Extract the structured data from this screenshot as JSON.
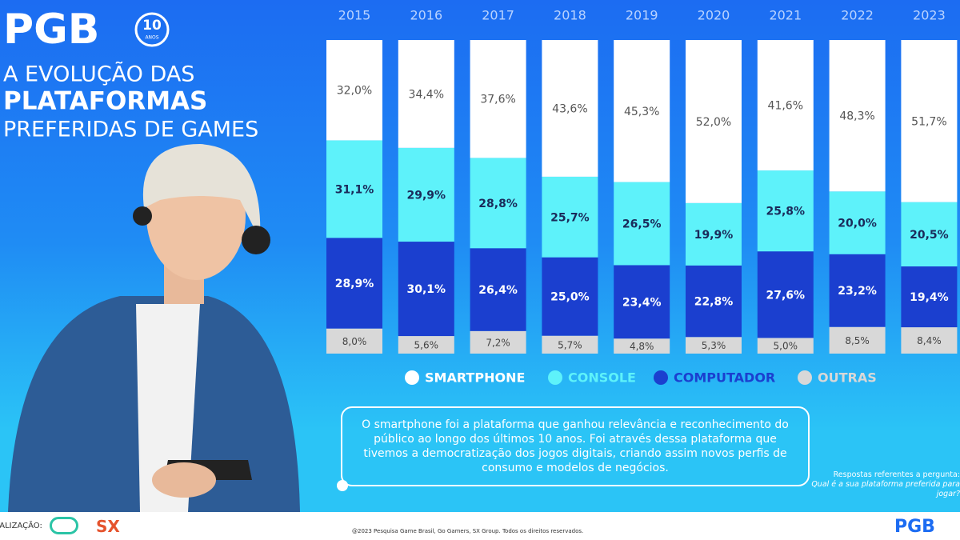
{
  "header": {
    "logo": "PGB",
    "badge": "10",
    "badge_sub": "ANOS",
    "title_lines": [
      "A EVOLUÇÃO DAS",
      "PLATAFORMAS",
      "PREFERIDAS DE GAMES"
    ]
  },
  "chart_data": {
    "type": "stacked_bar",
    "categories": [
      "2015",
      "2016",
      "2017",
      "2018",
      "2019",
      "2020",
      "2021",
      "2022",
      "2023"
    ],
    "ylim": [
      0,
      100
    ],
    "series": [
      {
        "name": "SMARTPHONE",
        "color": "#ffffff",
        "values": [
          32.0,
          34.4,
          37.6,
          43.6,
          45.3,
          52.0,
          41.6,
          48.3,
          51.7
        ],
        "value_labels": [
          "32,0%",
          "34,4%",
          "37,6%",
          "43,6%",
          "45,3%",
          "52,0%",
          "41,6%",
          "48,3%",
          "51,7%"
        ]
      },
      {
        "name": "CONSOLE",
        "color": "#5ef2fa",
        "values": [
          31.1,
          29.9,
          28.8,
          25.7,
          26.5,
          19.9,
          25.8,
          20.0,
          20.5
        ],
        "value_labels": [
          "31,1%",
          "29,9%",
          "28,8%",
          "25,7%",
          "26,5%",
          "19,9%",
          "25,8%",
          "20,0%",
          "20,5%"
        ]
      },
      {
        "name": "COMPUTADOR",
        "color": "#1b3fcf",
        "values": [
          28.9,
          30.1,
          26.4,
          25.0,
          23.4,
          22.8,
          27.6,
          23.2,
          19.4
        ],
        "value_labels": [
          "28,9%",
          "30,1%",
          "26,4%",
          "25,0%",
          "23,4%",
          "22,8%",
          "27,6%",
          "23,2%",
          "19,4%"
        ]
      },
      {
        "name": "OUTRAS",
        "color": "#d8d8d8",
        "values": [
          8.0,
          5.6,
          7.2,
          5.7,
          4.8,
          5.3,
          5.0,
          8.5,
          8.4
        ],
        "value_labels": [
          "8,0%",
          "5,6%",
          "7,2%",
          "5,7%",
          "4,8%",
          "5,3%",
          "5,0%",
          "8,5%",
          "8,4%"
        ]
      }
    ]
  },
  "callout": "O smartphone foi a plataforma que ganhou relevância e reconhecimento do público ao longo dos últimos 10 anos. Foi através dessa plataforma que tivemos a democratização dos jogos digitais, criando assim novos perfis de consumo e modelos de negócios.",
  "note": {
    "line1": "Respostas referentes a pergunta:",
    "line2": "Qual é a sua plataforma preferida para jogar?"
  },
  "footer": {
    "credit_label": "REALIZAÇÃO:",
    "copyright": "@2023 Pesquisa Game Brasil, Go Gamers, SX Group. Todos os direitos reservados.",
    "logo_sx": "SX",
    "logo_pgb": "PGB"
  }
}
